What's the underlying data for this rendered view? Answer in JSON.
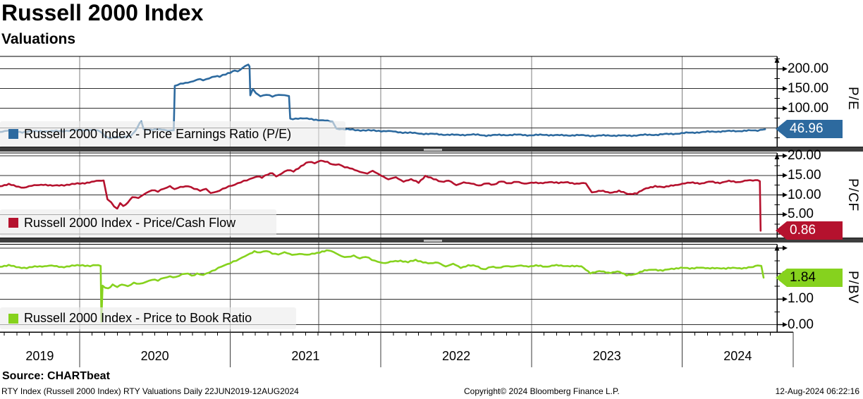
{
  "header": {
    "title": "Russell 2000 Index",
    "subtitle": "Valuations"
  },
  "x_axis": {
    "year_labels": [
      "2019",
      "2020",
      "2021",
      "2022",
      "2023",
      "2024"
    ]
  },
  "footer": {
    "source": "Source: CHARTbeat",
    "left": "RTY Index (Russell 2000 Index) RTY Valuations  Daily 22JUN2019-12AUG2024",
    "center": "Copyright© 2024 Bloomberg Finance L.P.",
    "right": "12-Aug-2024 06:22:16"
  },
  "chart_data": [
    {
      "type": "line",
      "name": "Russell 2000 Index - Price Earnings Ratio (P/E)",
      "axis_label": "P/E",
      "color": "#2d6a9f",
      "badge_label": "46.96",
      "last_value": 46.96,
      "badge_text_color": "#ffffff",
      "ylim": [
        0,
        231
      ],
      "minor_step": 25,
      "yticks": [
        {
          "v": 200,
          "label": "200.00"
        },
        {
          "v": 150,
          "label": "150.00"
        },
        {
          "v": 100,
          "label": "100.00"
        },
        {
          "v": 50,
          "label": ""
        }
      ],
      "x_unit": "year",
      "points": [
        [
          2019.472,
          41
        ],
        [
          2019.52,
          43.5
        ],
        [
          2019.57,
          41.5
        ],
        [
          2019.62,
          40
        ],
        [
          2019.68,
          41.5
        ],
        [
          2019.74,
          42.5
        ],
        [
          2019.8,
          41.5
        ],
        [
          2019.86,
          42.5
        ],
        [
          2019.93,
          43.5
        ],
        [
          2020.0,
          44.5
        ],
        [
          2020.06,
          45.5
        ],
        [
          2020.11,
          44
        ],
        [
          2020.14,
          41
        ],
        [
          2020.17,
          30
        ],
        [
          2020.2,
          24
        ],
        [
          2020.23,
          26.5
        ],
        [
          2020.26,
          25
        ],
        [
          2020.3,
          28
        ],
        [
          2020.34,
          31
        ],
        [
          2020.37,
          42
        ],
        [
          2020.4,
          62
        ],
        [
          2020.41,
          67
        ],
        [
          2020.425,
          47
        ],
        [
          2020.47,
          46.5
        ],
        [
          2020.53,
          46
        ],
        [
          2020.58,
          45
        ],
        [
          2020.625,
          44.5
        ],
        [
          2020.632,
          157
        ],
        [
          2020.67,
          161
        ],
        [
          2020.72,
          166
        ],
        [
          2020.77,
          171
        ],
        [
          2020.8,
          174
        ],
        [
          2020.82,
          170
        ],
        [
          2020.86,
          177
        ],
        [
          2020.9,
          182
        ],
        [
          2020.93,
          180
        ],
        [
          2020.97,
          186
        ],
        [
          2021.0,
          191
        ],
        [
          2021.03,
          197
        ],
        [
          2021.05,
          193
        ],
        [
          2021.08,
          201
        ],
        [
          2021.1,
          207
        ],
        [
          2021.12,
          210
        ],
        [
          2021.128,
          206
        ],
        [
          2021.133,
          133
        ],
        [
          2021.15,
          150
        ],
        [
          2021.17,
          140
        ],
        [
          2021.2,
          130
        ],
        [
          2021.24,
          134
        ],
        [
          2021.28,
          131
        ],
        [
          2021.32,
          135
        ],
        [
          2021.36,
          132
        ],
        [
          2021.39,
          131
        ],
        [
          2021.398,
          73
        ],
        [
          2021.45,
          75
        ],
        [
          2021.51,
          73.5
        ],
        [
          2021.57,
          71.5
        ],
        [
          2021.63,
          69
        ],
        [
          2021.68,
          65
        ],
        [
          2021.705,
          49
        ],
        [
          2021.76,
          47
        ],
        [
          2021.83,
          45.5
        ],
        [
          2021.9,
          44
        ],
        [
          2021.97,
          43.5
        ],
        [
          2022.05,
          42
        ],
        [
          2022.13,
          39.5
        ],
        [
          2022.21,
          37.5
        ],
        [
          2022.3,
          35.5
        ],
        [
          2022.4,
          34
        ],
        [
          2022.5,
          32.5
        ],
        [
          2022.6,
          33.5
        ],
        [
          2022.7,
          31.5
        ],
        [
          2022.8,
          32.5
        ],
        [
          2022.9,
          33
        ],
        [
          2023.0,
          32
        ],
        [
          2023.1,
          33
        ],
        [
          2023.2,
          31.5
        ],
        [
          2023.3,
          32
        ],
        [
          2023.42,
          30.5
        ],
        [
          2023.52,
          31.5
        ],
        [
          2023.62,
          30.5
        ],
        [
          2023.74,
          32.5
        ],
        [
          2023.84,
          33.5
        ],
        [
          2023.94,
          35.5
        ],
        [
          2024.04,
          38
        ],
        [
          2024.14,
          40
        ],
        [
          2024.24,
          41.5
        ],
        [
          2024.34,
          42.5
        ],
        [
          2024.44,
          43.5
        ],
        [
          2024.5,
          44
        ],
        [
          2024.535,
          47.5
        ],
        [
          2024.55,
          46.96
        ]
      ]
    },
    {
      "type": "line",
      "name": "Russell 2000 Index - Price/Cash Flow",
      "axis_label": "P/CF",
      "color": "#b5122e",
      "badge_label": "0.86",
      "last_value": 0.86,
      "badge_text_color": "#ffffff",
      "ylim": [
        0,
        20.7
      ],
      "minor_step": 2.5,
      "yticks": [
        {
          "v": 20,
          "label": "20.00"
        },
        {
          "v": 15,
          "label": "15.00"
        },
        {
          "v": 10,
          "label": "10.00"
        },
        {
          "v": 5,
          "label": "5.00"
        },
        {
          "v": 0,
          "label": ""
        }
      ],
      "x_unit": "year",
      "points": [
        [
          2019.472,
          12.3
        ],
        [
          2019.53,
          12.7
        ],
        [
          2019.58,
          12.2
        ],
        [
          2019.63,
          11.9
        ],
        [
          2019.7,
          12.4
        ],
        [
          2019.76,
          12.7
        ],
        [
          2019.82,
          12.3
        ],
        [
          2019.88,
          12.5
        ],
        [
          2019.95,
          12.7
        ],
        [
          2020.02,
          13.0
        ],
        [
          2020.08,
          13.3
        ],
        [
          2020.13,
          13.6
        ],
        [
          2020.16,
          13.7
        ],
        [
          2020.185,
          8.9
        ],
        [
          2020.21,
          8.2
        ],
        [
          2020.23,
          6.9
        ],
        [
          2020.25,
          6.4
        ],
        [
          2020.27,
          7.9
        ],
        [
          2020.29,
          7.1
        ],
        [
          2020.32,
          8.1
        ],
        [
          2020.35,
          9.5
        ],
        [
          2020.39,
          9.1
        ],
        [
          2020.44,
          10.5
        ],
        [
          2020.48,
          11.3
        ],
        [
          2020.52,
          10.8
        ],
        [
          2020.56,
          11.6
        ],
        [
          2020.6,
          12.3
        ],
        [
          2020.63,
          11.5
        ],
        [
          2020.67,
          11.9
        ],
        [
          2020.72,
          12.3
        ],
        [
          2020.76,
          11.7
        ],
        [
          2020.8,
          11.0
        ],
        [
          2020.84,
          11.5
        ],
        [
          2020.87,
          10.6
        ],
        [
          2020.91,
          10.8
        ],
        [
          2020.95,
          11.4
        ],
        [
          2020.99,
          12.2
        ],
        [
          2021.03,
          12.7
        ],
        [
          2021.07,
          13.2
        ],
        [
          2021.11,
          13.7
        ],
        [
          2021.15,
          14.4
        ],
        [
          2021.18,
          14.8
        ],
        [
          2021.21,
          14.4
        ],
        [
          2021.25,
          15.2
        ],
        [
          2021.28,
          15.7
        ],
        [
          2021.305,
          14.8
        ],
        [
          2021.34,
          15.4
        ],
        [
          2021.38,
          16.3
        ],
        [
          2021.42,
          16.1
        ],
        [
          2021.47,
          17.3
        ],
        [
          2021.52,
          18.4
        ],
        [
          2021.56,
          18.2
        ],
        [
          2021.6,
          18.8
        ],
        [
          2021.645,
          18.3
        ],
        [
          2021.68,
          17.7
        ],
        [
          2021.72,
          17.9
        ],
        [
          2021.76,
          17.1
        ],
        [
          2021.81,
          16.6
        ],
        [
          2021.86,
          16.0
        ],
        [
          2021.91,
          15.4
        ],
        [
          2021.945,
          16.1
        ],
        [
          2022.0,
          15.1
        ],
        [
          2022.05,
          13.9
        ],
        [
          2022.1,
          14.5
        ],
        [
          2022.15,
          13.5
        ],
        [
          2022.2,
          13.9
        ],
        [
          2022.25,
          13.2
        ],
        [
          2022.295,
          14.9
        ],
        [
          2022.35,
          14.0
        ],
        [
          2022.4,
          13.4
        ],
        [
          2022.45,
          13.7
        ],
        [
          2022.5,
          12.4
        ],
        [
          2022.55,
          13.3
        ],
        [
          2022.6,
          12.9
        ],
        [
          2022.65,
          12.3
        ],
        [
          2022.7,
          13.1
        ],
        [
          2022.75,
          12.5
        ],
        [
          2022.8,
          13.5
        ],
        [
          2022.85,
          13.0
        ],
        [
          2022.9,
          13.3
        ],
        [
          2022.95,
          12.9
        ],
        [
          2023.0,
          13.2
        ],
        [
          2023.06,
          12.9
        ],
        [
          2023.12,
          13.4
        ],
        [
          2023.18,
          13.0
        ],
        [
          2023.24,
          13.3
        ],
        [
          2023.3,
          12.8
        ],
        [
          2023.36,
          13.0
        ],
        [
          2023.4,
          10.7
        ],
        [
          2023.46,
          11.0
        ],
        [
          2023.52,
          10.6
        ],
        [
          2023.58,
          11.0
        ],
        [
          2023.64,
          10.2
        ],
        [
          2023.7,
          10.5
        ],
        [
          2023.76,
          11.6
        ],
        [
          2023.82,
          12.3
        ],
        [
          2023.88,
          11.9
        ],
        [
          2023.94,
          12.5
        ],
        [
          2024.0,
          12.8
        ],
        [
          2024.07,
          13.2
        ],
        [
          2024.13,
          12.9
        ],
        [
          2024.19,
          13.4
        ],
        [
          2024.25,
          13.1
        ],
        [
          2024.31,
          13.5
        ],
        [
          2024.37,
          13.3
        ],
        [
          2024.43,
          13.7
        ],
        [
          2024.47,
          13.6
        ],
        [
          2024.5,
          13.9
        ],
        [
          2024.515,
          13.5
        ],
        [
          2024.52,
          0.86
        ]
      ]
    },
    {
      "type": "line",
      "name": "Russell 2000 Index - Price to Book Ratio",
      "axis_label": "P/BV",
      "color": "#86d21e",
      "badge_label": "1.84",
      "last_value": 1.84,
      "badge_text_color": "#000000",
      "ylim": [
        0,
        3.15
      ],
      "minor_step": 0.5,
      "yticks": [
        {
          "v": 3,
          "label": ""
        },
        {
          "v": 2,
          "label": ""
        },
        {
          "v": 1,
          "label": "1.00"
        },
        {
          "v": 0,
          "label": "0.00"
        }
      ],
      "x_unit": "year",
      "points": [
        [
          2019.472,
          2.28
        ],
        [
          2019.53,
          2.32
        ],
        [
          2019.58,
          2.26
        ],
        [
          2019.65,
          2.22
        ],
        [
          2019.72,
          2.28
        ],
        [
          2019.8,
          2.31
        ],
        [
          2019.88,
          2.26
        ],
        [
          2019.95,
          2.3
        ],
        [
          2020.02,
          2.33
        ],
        [
          2020.07,
          2.3
        ],
        [
          2020.11,
          2.32
        ],
        [
          2020.14,
          2.3
        ],
        [
          2020.145,
          0.12
        ],
        [
          2020.153,
          1.52
        ],
        [
          2020.17,
          1.47
        ],
        [
          2020.19,
          1.42
        ],
        [
          2020.22,
          1.56
        ],
        [
          2020.25,
          1.46
        ],
        [
          2020.28,
          1.58
        ],
        [
          2020.32,
          1.52
        ],
        [
          2020.36,
          1.63
        ],
        [
          2020.4,
          1.58
        ],
        [
          2020.44,
          1.68
        ],
        [
          2020.48,
          1.77
        ],
        [
          2020.52,
          1.72
        ],
        [
          2020.56,
          1.83
        ],
        [
          2020.6,
          1.9
        ],
        [
          2020.64,
          1.85
        ],
        [
          2020.68,
          1.96
        ],
        [
          2020.72,
          2.02
        ],
        [
          2020.745,
          1.92
        ],
        [
          2020.78,
          1.99
        ],
        [
          2020.82,
          1.93
        ],
        [
          2020.86,
          2.06
        ],
        [
          2020.9,
          2.16
        ],
        [
          2020.94,
          2.26
        ],
        [
          2020.98,
          2.36
        ],
        [
          2021.02,
          2.48
        ],
        [
          2021.06,
          2.56
        ],
        [
          2021.1,
          2.68
        ],
        [
          2021.13,
          2.78
        ],
        [
          2021.16,
          2.88
        ],
        [
          2021.2,
          2.82
        ],
        [
          2021.24,
          2.88
        ],
        [
          2021.28,
          2.8
        ],
        [
          2021.32,
          2.76
        ],
        [
          2021.36,
          2.82
        ],
        [
          2021.41,
          2.74
        ],
        [
          2021.46,
          2.78
        ],
        [
          2021.51,
          2.72
        ],
        [
          2021.56,
          2.8
        ],
        [
          2021.61,
          2.86
        ],
        [
          2021.655,
          2.9
        ],
        [
          2021.7,
          2.82
        ],
        [
          2021.74,
          2.68
        ],
        [
          2021.78,
          2.63
        ],
        [
          2021.82,
          2.7
        ],
        [
          2021.86,
          2.61
        ],
        [
          2021.9,
          2.66
        ],
        [
          2021.94,
          2.53
        ],
        [
          2021.98,
          2.47
        ],
        [
          2022.03,
          2.41
        ],
        [
          2022.08,
          2.47
        ],
        [
          2022.13,
          2.51
        ],
        [
          2022.18,
          2.45
        ],
        [
          2022.23,
          2.52
        ],
        [
          2022.28,
          2.46
        ],
        [
          2022.33,
          2.39
        ],
        [
          2022.38,
          2.43
        ],
        [
          2022.43,
          2.29
        ],
        [
          2022.48,
          2.37
        ],
        [
          2022.53,
          2.23
        ],
        [
          2022.58,
          2.33
        ],
        [
          2022.63,
          2.29
        ],
        [
          2022.68,
          2.17
        ],
        [
          2022.73,
          2.27
        ],
        [
          2022.78,
          2.21
        ],
        [
          2022.83,
          2.31
        ],
        [
          2022.88,
          2.27
        ],
        [
          2022.93,
          2.31
        ],
        [
          2022.98,
          2.29
        ],
        [
          2023.03,
          2.31
        ],
        [
          2023.09,
          2.27
        ],
        [
          2023.15,
          2.33
        ],
        [
          2023.21,
          2.29
        ],
        [
          2023.27,
          2.31
        ],
        [
          2023.33,
          2.27
        ],
        [
          2023.39,
          2.03
        ],
        [
          2023.45,
          2.09
        ],
        [
          2023.51,
          2.03
        ],
        [
          2023.57,
          2.09
        ],
        [
          2023.63,
          1.93
        ],
        [
          2023.69,
          1.99
        ],
        [
          2023.75,
          2.11
        ],
        [
          2023.81,
          2.17
        ],
        [
          2023.87,
          2.11
        ],
        [
          2023.93,
          2.19
        ],
        [
          2023.99,
          2.23
        ],
        [
          2024.05,
          2.19
        ],
        [
          2024.11,
          2.25
        ],
        [
          2024.17,
          2.19
        ],
        [
          2024.23,
          2.23
        ],
        [
          2024.29,
          2.19
        ],
        [
          2024.35,
          2.23
        ],
        [
          2024.41,
          2.21
        ],
        [
          2024.47,
          2.25
        ],
        [
          2024.5,
          2.34
        ],
        [
          2024.525,
          2.3
        ],
        [
          2024.54,
          1.84
        ]
      ]
    }
  ]
}
